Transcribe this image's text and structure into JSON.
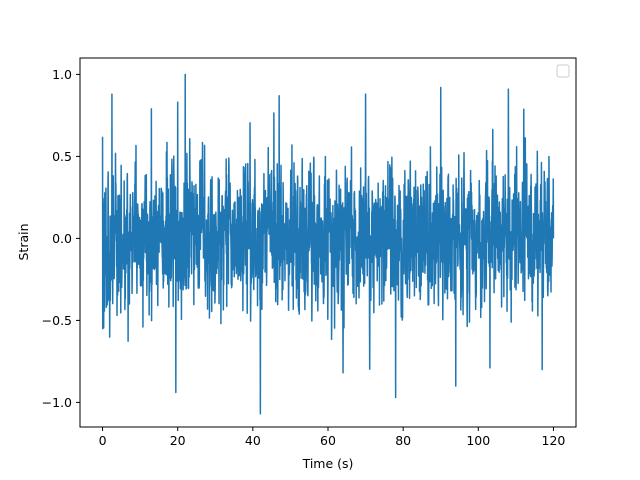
{
  "chart_data": {
    "type": "line",
    "title": "",
    "xlabel": "Time (s)",
    "ylabel": "Strain",
    "xlim": [
      -6,
      126
    ],
    "ylim": [
      -1.15,
      1.1
    ],
    "xticks": [
      0,
      20,
      40,
      60,
      80,
      100,
      120
    ],
    "yticks": [
      -1.0,
      -0.5,
      0.0,
      0.5,
      1.0
    ],
    "xtick_labels": [
      "0",
      "20",
      "40",
      "60",
      "80",
      "100",
      "120"
    ],
    "ytick_labels": [
      "−1.0",
      "−0.5",
      "0.0",
      "0.5",
      "1.0"
    ],
    "grid": false,
    "legend": {
      "placement": "top-right",
      "entries": []
    },
    "series": [
      {
        "color": "#1f77b4",
        "x_start": 0,
        "x_end": 120,
        "y_range_observed": [
          -1.07,
          1.0
        ],
        "typical_envelope": [
          -0.55,
          0.6
        ],
        "notable_peaks": [
          {
            "x": 2.5,
            "y": 0.88
          },
          {
            "x": 13.0,
            "y": 0.79
          },
          {
            "x": 20.0,
            "y": 0.83
          },
          {
            "x": 22.0,
            "y": 1.0
          },
          {
            "x": 47.0,
            "y": 0.87
          },
          {
            "x": 70.0,
            "y": 0.88
          },
          {
            "x": 90.0,
            "y": 0.92
          },
          {
            "x": 108.0,
            "y": 0.91
          },
          {
            "x": 19.5,
            "y": -0.94
          },
          {
            "x": 42.0,
            "y": -1.07
          },
          {
            "x": 64.0,
            "y": -0.82
          },
          {
            "x": 78.0,
            "y": -0.97
          },
          {
            "x": 94.0,
            "y": -0.9
          },
          {
            "x": 117.0,
            "y": -0.8
          }
        ]
      }
    ]
  }
}
